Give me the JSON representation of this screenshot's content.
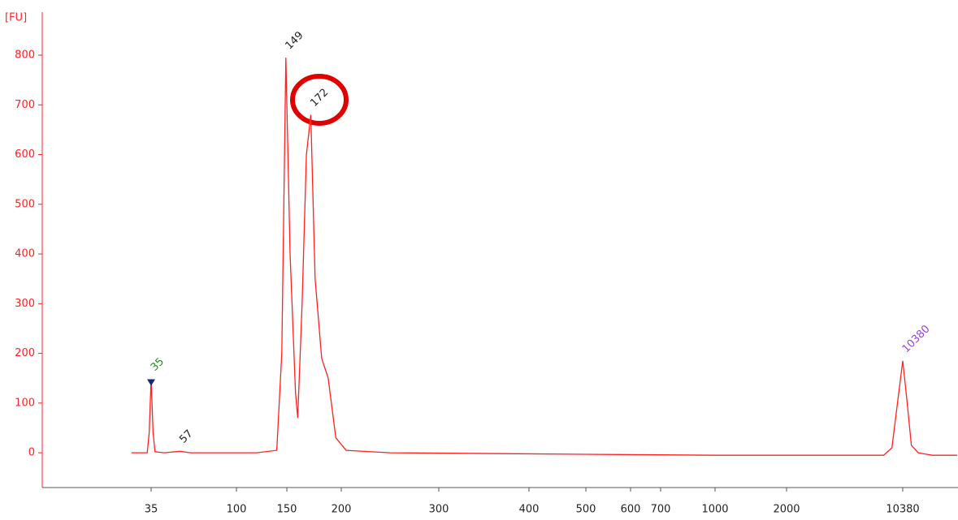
{
  "chart_data": {
    "type": "line",
    "y_label": "[FU]",
    "ylim": [
      -70,
      880
    ],
    "yticks": [
      0,
      100,
      200,
      300,
      400,
      500,
      600,
      700,
      800
    ],
    "xticks": [
      35,
      100,
      150,
      200,
      300,
      400,
      500,
      600,
      700,
      1000,
      2000,
      10380
    ],
    "series": [
      {
        "color": "#ff2020",
        "x": [
          20,
          32,
          33.5,
          35,
          36.5,
          38,
          45,
          57,
          65,
          120,
          140,
          145,
          149,
          153,
          158,
          160,
          164,
          168,
          172,
          176,
          182,
          188,
          195,
          205,
          250,
          500,
          1000,
          2000,
          9000,
          9600,
          10000,
          10380,
          10700,
          11000,
          11500,
          12500,
          14300
        ],
        "values": [
          0,
          0,
          40,
          148,
          40,
          2,
          0,
          3,
          0,
          0,
          5,
          200,
          795,
          400,
          120,
          70,
          300,
          600,
          680,
          350,
          190,
          150,
          30,
          5,
          0,
          -3,
          -5,
          -5,
          -5,
          10,
          100,
          185,
          100,
          15,
          0,
          -5,
          -5
        ]
      }
    ],
    "peaks": [
      {
        "bp": 35,
        "fu": 148,
        "color": "#1e8c1e"
      },
      {
        "bp": 57,
        "fu": 3,
        "color": "#222222"
      },
      {
        "bp": 149,
        "fu": 795,
        "color": "#222222"
      },
      {
        "bp": 172,
        "fu": 680,
        "color": "#222222"
      },
      {
        "bp": 10380,
        "fu": 185,
        "color": "#9b40e0"
      }
    ]
  }
}
